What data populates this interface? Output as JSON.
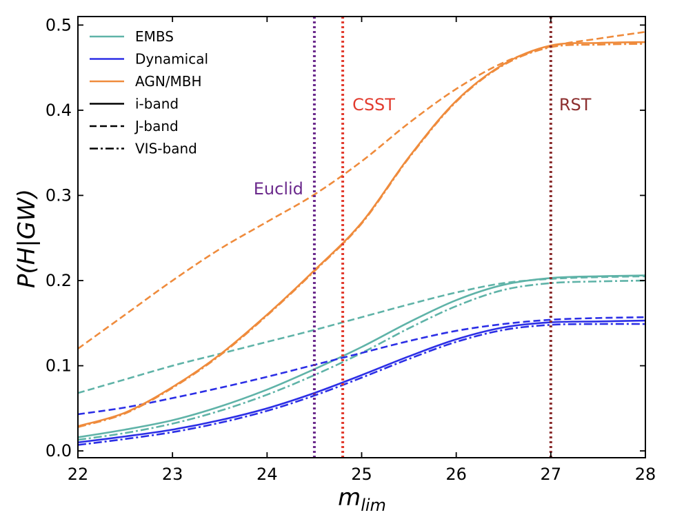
{
  "chart_data": {
    "type": "line",
    "xlabel": "m",
    "xlabel_sub": "lim",
    "ylabel": "P(H|GW)",
    "xlim": [
      22,
      28
    ],
    "ylim": [
      -0.008,
      0.51
    ],
    "xticks": [
      22,
      23,
      24,
      25,
      26,
      27,
      28
    ],
    "yticks": [
      0.0,
      0.1,
      0.2,
      0.3,
      0.4,
      0.5
    ],
    "xtick_labels": [
      "22",
      "23",
      "24",
      "25",
      "26",
      "27",
      "28"
    ],
    "ytick_labels": [
      "0.0",
      "0.1",
      "0.2",
      "0.3",
      "0.4",
      "0.5"
    ],
    "grid": false,
    "legend_position": "top-left",
    "legend": [
      {
        "label": "EMBS",
        "kind": "color",
        "color": "#5fb3a8"
      },
      {
        "label": "Dynamical",
        "kind": "color",
        "color": "#2b2ee6"
      },
      {
        "label": "AGN/MBH",
        "kind": "color",
        "color": "#ef8b3c"
      },
      {
        "label": "i-band",
        "kind": "style",
        "style": "solid"
      },
      {
        "label": "J-band",
        "kind": "style",
        "style": "dashed"
      },
      {
        "label": "VIS-band",
        "kind": "style",
        "style": "dashdot"
      }
    ],
    "vlines": [
      {
        "name": "Euclid",
        "x": 24.5,
        "color": "#6b2a8c"
      },
      {
        "name": "CSST",
        "x": 24.8,
        "color": "#e23b2e"
      },
      {
        "name": "RST",
        "x": 27.0,
        "color": "#8b2e2e"
      }
    ],
    "series": [
      {
        "model": "EMBS",
        "band": "i-band",
        "color": "#5fb3a8",
        "style": "solid",
        "x": [
          22,
          22.5,
          23,
          23.5,
          24,
          24.5,
          25,
          25.5,
          26,
          26.5,
          27,
          27.5,
          28
        ],
        "y": [
          0.016,
          0.025,
          0.036,
          0.052,
          0.072,
          0.096,
          0.122,
          0.151,
          0.177,
          0.195,
          0.203,
          0.205,
          0.206
        ]
      },
      {
        "model": "EMBS",
        "band": "J-band",
        "color": "#5fb3a8",
        "style": "dashed",
        "x": [
          22,
          22.5,
          23,
          23.5,
          24,
          24.5,
          25,
          25.5,
          26,
          26.5,
          27,
          27.5,
          28
        ],
        "y": [
          0.068,
          0.084,
          0.1,
          0.114,
          0.128,
          0.142,
          0.157,
          0.172,
          0.186,
          0.197,
          0.202,
          0.204,
          0.205
        ]
      },
      {
        "model": "EMBS",
        "band": "VIS-band",
        "color": "#5fb3a8",
        "style": "dashdot",
        "x": [
          22,
          22.5,
          23,
          23.5,
          24,
          24.5,
          25,
          25.5,
          26,
          26.5,
          27,
          27.5,
          28
        ],
        "y": [
          0.013,
          0.021,
          0.032,
          0.047,
          0.066,
          0.089,
          0.115,
          0.144,
          0.17,
          0.189,
          0.197,
          0.199,
          0.2
        ]
      },
      {
        "model": "Dynamical",
        "band": "i-band",
        "color": "#2b2ee6",
        "style": "solid",
        "x": [
          22,
          22.5,
          23,
          23.5,
          24,
          24.5,
          25,
          25.5,
          26,
          26.5,
          27,
          27.5,
          28
        ],
        "y": [
          0.01,
          0.017,
          0.025,
          0.036,
          0.05,
          0.068,
          0.089,
          0.111,
          0.131,
          0.145,
          0.151,
          0.152,
          0.153
        ]
      },
      {
        "model": "Dynamical",
        "band": "J-band",
        "color": "#2b2ee6",
        "style": "dashed",
        "x": [
          22,
          22.5,
          23,
          23.5,
          24,
          24.5,
          25,
          25.5,
          26,
          26.5,
          27,
          27.5,
          28
        ],
        "y": [
          0.043,
          0.051,
          0.062,
          0.074,
          0.087,
          0.101,
          0.115,
          0.129,
          0.141,
          0.149,
          0.154,
          0.156,
          0.157
        ]
      },
      {
        "model": "Dynamical",
        "band": "VIS-band",
        "color": "#2b2ee6",
        "style": "dashdot",
        "x": [
          22,
          22.5,
          23,
          23.5,
          24,
          24.5,
          25,
          25.5,
          26,
          26.5,
          27,
          27.5,
          28
        ],
        "y": [
          0.007,
          0.014,
          0.022,
          0.033,
          0.047,
          0.065,
          0.086,
          0.108,
          0.128,
          0.142,
          0.148,
          0.149,
          0.149
        ]
      },
      {
        "model": "AGN/MBH",
        "band": "i-band",
        "color": "#ef8b3c",
        "style": "solid",
        "x": [
          22,
          22.5,
          23,
          23.5,
          24,
          24.5,
          25,
          25.5,
          26,
          26.5,
          27,
          27.5,
          28
        ],
        "y": [
          0.029,
          0.045,
          0.075,
          0.113,
          0.16,
          0.212,
          0.268,
          0.345,
          0.411,
          0.454,
          0.476,
          0.479,
          0.48
        ]
      },
      {
        "model": "AGN/MBH",
        "band": "J-band",
        "color": "#ef8b3c",
        "style": "dashed",
        "x": [
          22,
          22.5,
          23,
          23.5,
          24,
          24.5,
          25,
          25.5,
          26,
          26.5,
          27,
          27.5,
          28
        ],
        "y": [
          0.12,
          0.16,
          0.2,
          0.237,
          0.269,
          0.301,
          0.34,
          0.385,
          0.425,
          0.456,
          0.475,
          0.484,
          0.492
        ]
      },
      {
        "model": "AGN/MBH",
        "band": "VIS-band",
        "color": "#ef8b3c",
        "style": "dashdot",
        "x": [
          22,
          22.5,
          23,
          23.5,
          24,
          24.5,
          25,
          25.5,
          26,
          26.5,
          27,
          27.5,
          28
        ],
        "y": [
          0.028,
          0.044,
          0.074,
          0.112,
          0.159,
          0.211,
          0.267,
          0.344,
          0.41,
          0.453,
          0.474,
          0.477,
          0.478
        ]
      }
    ]
  }
}
